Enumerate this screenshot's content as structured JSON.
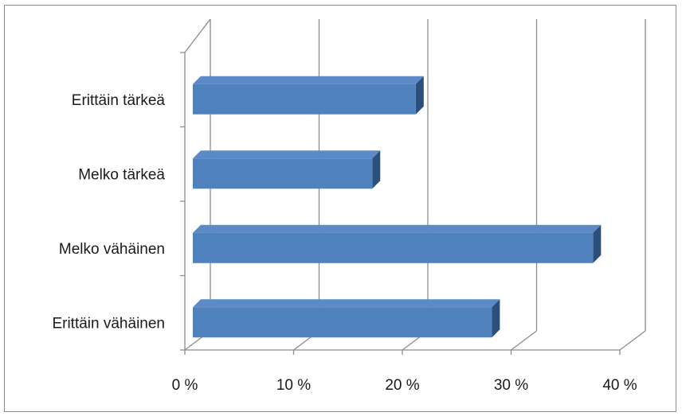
{
  "chart_data": {
    "type": "bar",
    "orientation": "horizontal",
    "style": "3d-clustered",
    "categories": [
      "Erittäin tärkeä",
      "Melko tärkeä",
      "Melko vähäinen",
      "Erittäin vähäinen"
    ],
    "values": [
      20.5,
      16.5,
      36.8,
      27.5
    ],
    "xlim": [
      0,
      40
    ],
    "x_ticks": [
      "0 %",
      "10 %",
      "20 %",
      "30 %",
      "40 %"
    ],
    "grid": true,
    "legend": "none",
    "bar_color": "#4f81bd",
    "bar_top_color": "#5b8ac6",
    "bar_side_color": "#2c4f7a"
  }
}
